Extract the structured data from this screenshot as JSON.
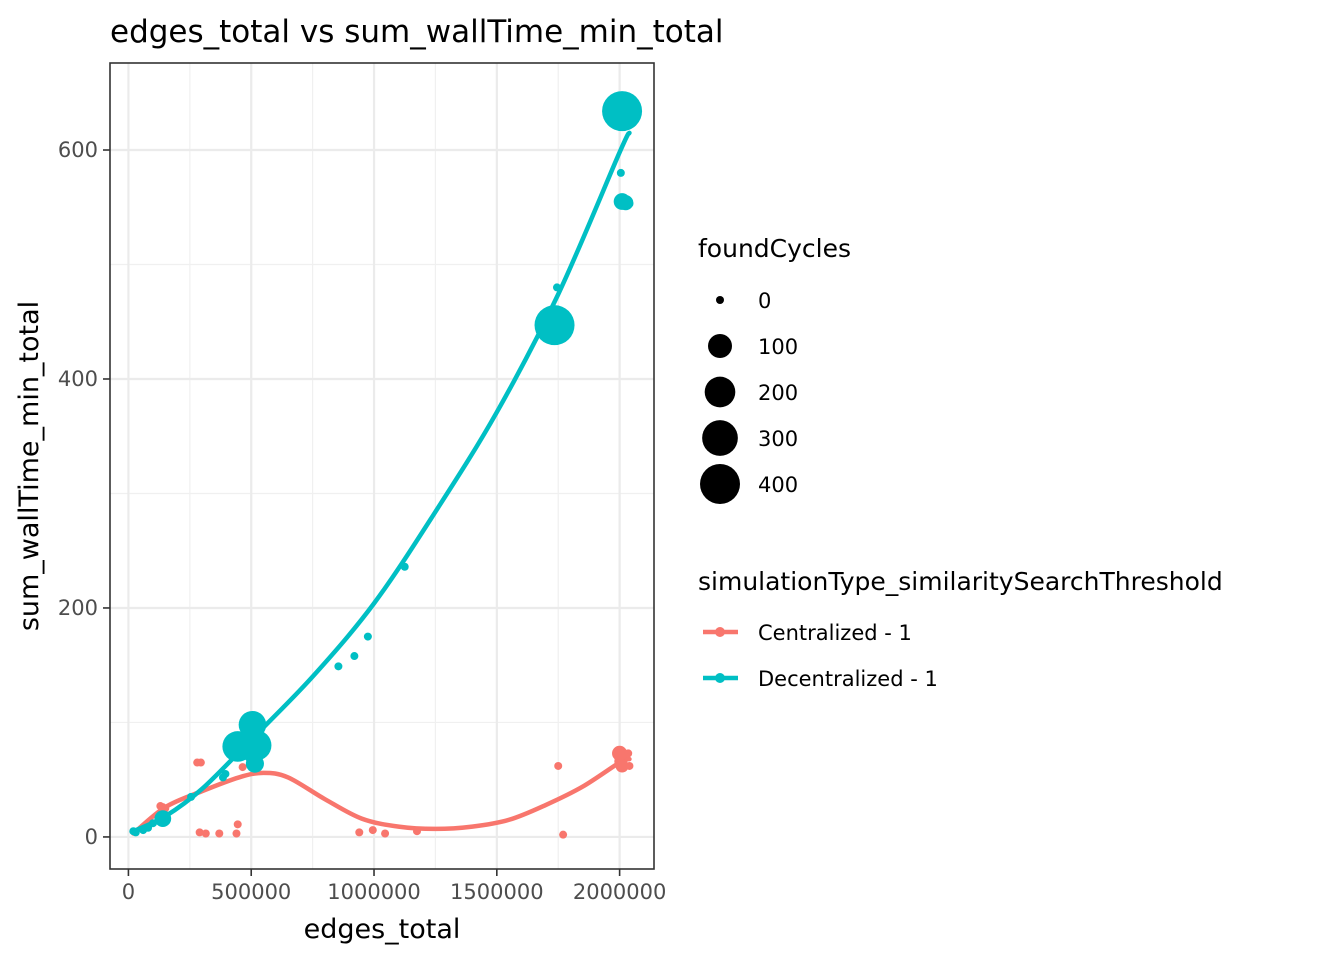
{
  "chart_data": {
    "type": "scatter",
    "title": "edges_total  vs  sum_wallTime_min_total",
    "xlabel": "edges_total",
    "ylabel": "sum_wallTime_min_total",
    "xlim": [
      -75000,
      2140000
    ],
    "ylim": [
      -28,
      676
    ],
    "xticks": [
      0,
      500000,
      1000000,
      1500000,
      2000000
    ],
    "xtick_labels": [
      "0",
      "500000",
      "1000000",
      "1500000",
      "2000000"
    ],
    "yticks": [
      0,
      200,
      400,
      600
    ],
    "ytick_labels": [
      "0",
      "200",
      "400",
      "600"
    ],
    "grid": true,
    "legend_position": "right",
    "size_legend": {
      "title": "foundCycles",
      "entries": [
        {
          "label": "0",
          "value": 0
        },
        {
          "label": "100",
          "value": 100
        },
        {
          "label": "200",
          "value": 200
        },
        {
          "label": "300",
          "value": 300
        },
        {
          "label": "400",
          "value": 400
        }
      ]
    },
    "color_legend": {
      "title": "simulationType_similaritySearchThreshold"
    },
    "series": [
      {
        "name": "Centralized - 1",
        "color": "#F8766D",
        "points": [
          [
            130000,
            27,
            0
          ],
          [
            140000,
            26,
            0
          ],
          [
            150000,
            25,
            0
          ],
          [
            280000,
            65,
            0
          ],
          [
            295000,
            65,
            0
          ],
          [
            290000,
            4,
            0
          ],
          [
            315000,
            3,
            0
          ],
          [
            370000,
            3,
            0
          ],
          [
            440000,
            3,
            0
          ],
          [
            445000,
            11,
            0
          ],
          [
            465000,
            61,
            0
          ],
          [
            500000,
            88,
            0
          ],
          [
            510000,
            63,
            0
          ],
          [
            515000,
            60,
            0
          ],
          [
            530000,
            62,
            0
          ],
          [
            940000,
            4,
            0
          ],
          [
            995000,
            6,
            0
          ],
          [
            1045000,
            3,
            0
          ],
          [
            1175000,
            5,
            0
          ],
          [
            1750000,
            62,
            0
          ],
          [
            1770000,
            2,
            0
          ],
          [
            2000000,
            73,
            20
          ],
          [
            2005000,
            66,
            10
          ],
          [
            2010000,
            62,
            10
          ],
          [
            2025000,
            70,
            0
          ],
          [
            2035000,
            73,
            0
          ],
          [
            2040000,
            62,
            0
          ]
        ],
        "trend": [
          [
            20000,
            3
          ],
          [
            150000,
            26
          ],
          [
            300000,
            40
          ],
          [
            450000,
            52
          ],
          [
            550000,
            56
          ],
          [
            650000,
            52
          ],
          [
            800000,
            33
          ],
          [
            950000,
            16
          ],
          [
            1100000,
            9
          ],
          [
            1250000,
            7
          ],
          [
            1400000,
            9
          ],
          [
            1550000,
            15
          ],
          [
            1700000,
            28
          ],
          [
            1850000,
            44
          ],
          [
            2000000,
            65
          ],
          [
            2040000,
            68
          ]
        ]
      },
      {
        "name": "Decentralized - 1",
        "color": "#00BFC4",
        "points": [
          [
            20000,
            5,
            0
          ],
          [
            30000,
            4,
            0
          ],
          [
            60000,
            6,
            0
          ],
          [
            80000,
            8,
            0
          ],
          [
            100000,
            12,
            0
          ],
          [
            140000,
            16,
            30
          ],
          [
            150000,
            14,
            0
          ],
          [
            255000,
            35,
            0
          ],
          [
            385000,
            52,
            0
          ],
          [
            395000,
            55,
            0
          ],
          [
            445000,
            79,
            200
          ],
          [
            505000,
            98,
            150
          ],
          [
            520000,
            80,
            200
          ],
          [
            510000,
            72,
            50
          ],
          [
            515000,
            64,
            40
          ],
          [
            855000,
            149,
            0
          ],
          [
            920000,
            158,
            0
          ],
          [
            975000,
            175,
            0
          ],
          [
            1125000,
            236,
            0
          ],
          [
            1745000,
            480,
            0
          ],
          [
            1735000,
            447,
            400
          ],
          [
            2005000,
            580,
            0
          ],
          [
            2010000,
            555,
            30
          ],
          [
            2025000,
            554,
            20
          ],
          [
            2040000,
            553,
            0
          ],
          [
            2010000,
            634,
            400
          ]
        ],
        "trend": [
          [
            20000,
            5
          ],
          [
            150000,
            18
          ],
          [
            300000,
            42
          ],
          [
            500000,
            85
          ],
          [
            750000,
            140
          ],
          [
            1000000,
            204
          ],
          [
            1250000,
            284
          ],
          [
            1500000,
            371
          ],
          [
            1750000,
            474
          ],
          [
            2000000,
            598
          ],
          [
            2040000,
            615
          ]
        ]
      }
    ]
  }
}
